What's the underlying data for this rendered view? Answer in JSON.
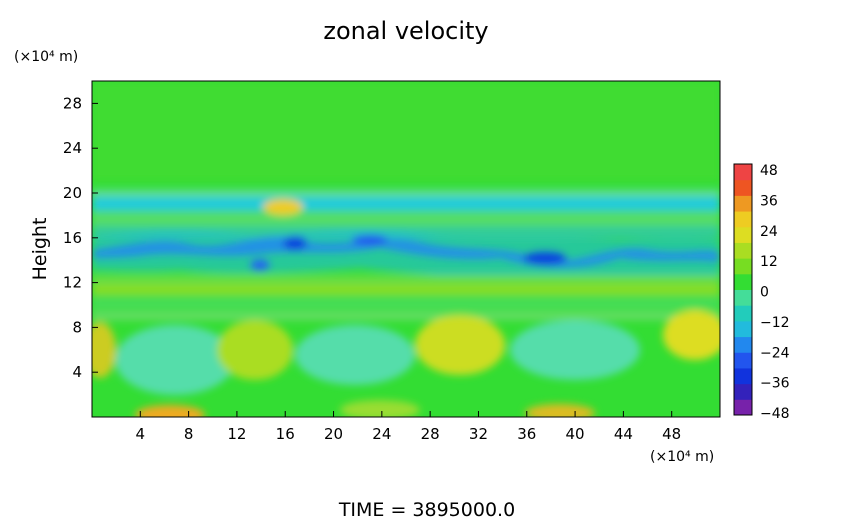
{
  "chart_data": {
    "type": "heatmap",
    "title": "zonal velocity",
    "ylabel": "Height",
    "y_unit": "(×10⁴ m)",
    "x_unit": "(×10⁴ m)",
    "xlim": [
      0,
      52
    ],
    "ylim": [
      0,
      30
    ],
    "x_ticks": [
      4,
      8,
      12,
      16,
      20,
      24,
      28,
      32,
      36,
      40,
      44,
      48
    ],
    "y_ticks": [
      4,
      8,
      12,
      16,
      20,
      24,
      28
    ],
    "colorbar": {
      "range": [
        -48,
        48
      ],
      "ticks": [
        "48",
        "36",
        "24",
        "12",
        "0",
        "−12",
        "−24",
        "−36",
        "−48"
      ]
    },
    "footer": "TIME = 3895000.0",
    "description_bands": [
      {
        "y_range": [
          20,
          30
        ],
        "value": 2
      },
      {
        "y_range": [
          18.5,
          20
        ],
        "value": -16
      },
      {
        "y_range": [
          13,
          18
        ],
        "value": -20
      },
      {
        "y_range": [
          9,
          12.5
        ],
        "value": 4
      },
      {
        "y_range": [
          0,
          9
        ],
        "value": 6
      }
    ]
  },
  "colors": {
    "zero": "#33dd33",
    "positive_max": "#ee8888",
    "negative_max": "#8822aa"
  }
}
